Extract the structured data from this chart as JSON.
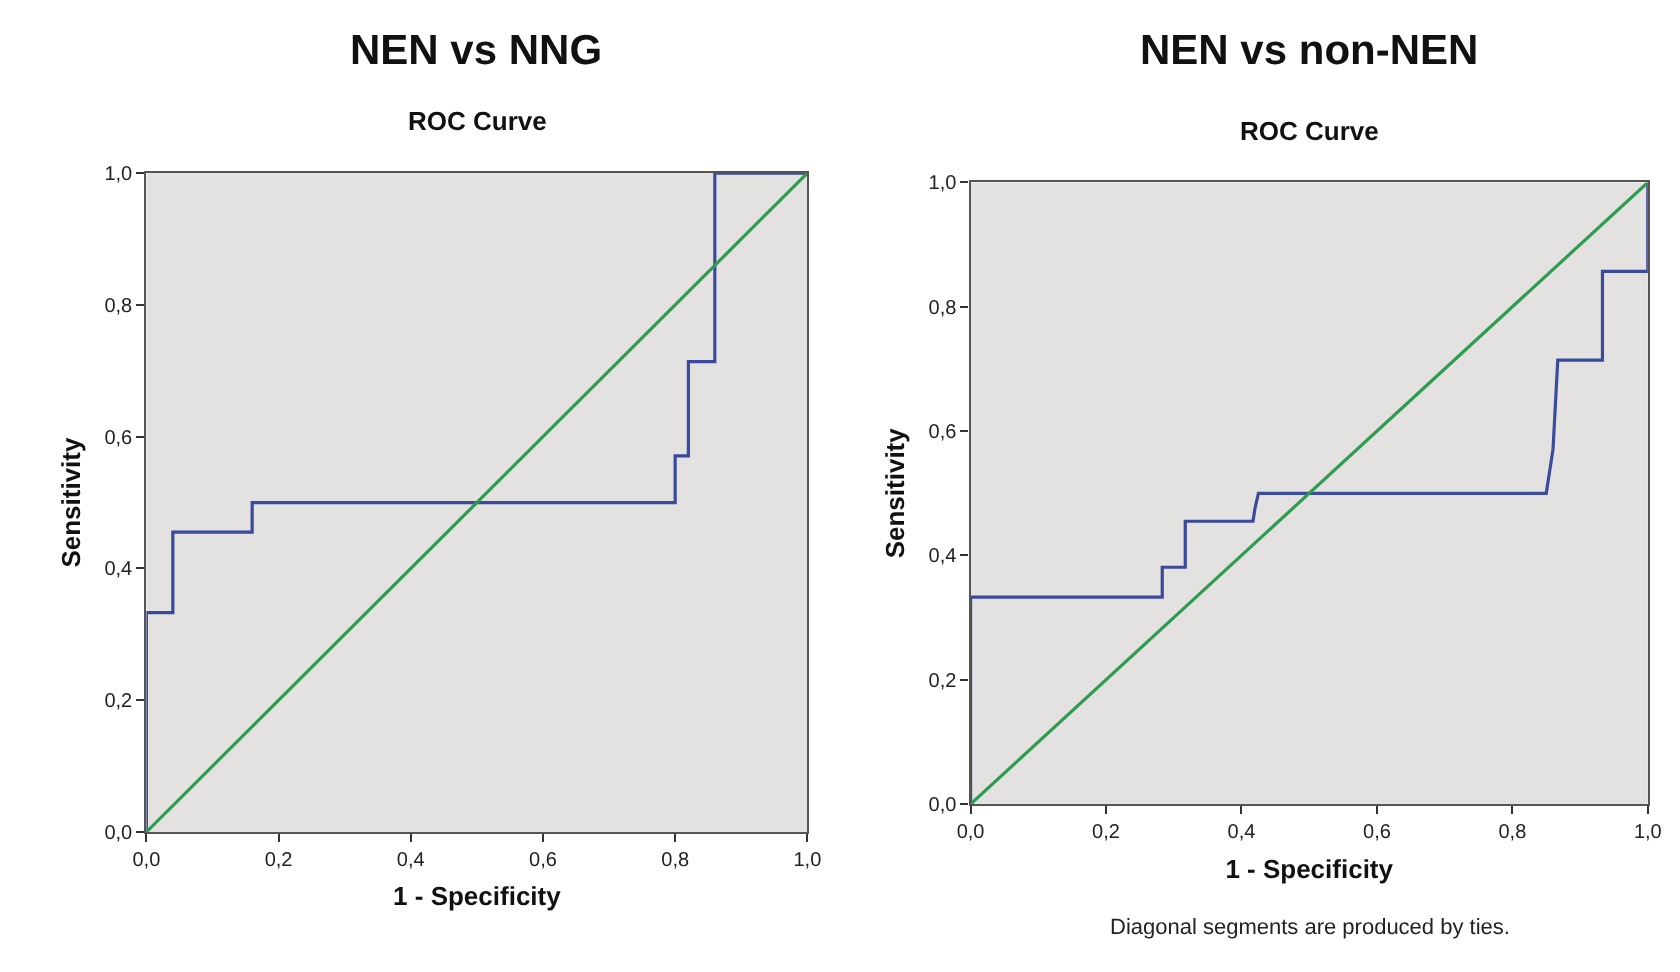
{
  "chart_data": [
    {
      "type": "line",
      "title": "NEN vs NNG",
      "subtitle": "ROC Curve",
      "xlabel": "1 - Specificity",
      "ylabel": "Sensitivity",
      "series": [
        {
          "color": "#3a4b9e",
          "x": [
            0,
            0,
            0.04,
            0.04,
            0.16,
            0.16,
            0.8,
            0.8,
            0.82,
            0.82,
            0.86,
            0.86,
            1
          ],
          "values": [
            0,
            0.333,
            0.333,
            0.455,
            0.455,
            0.5,
            0.5,
            0.571,
            0.571,
            0.714,
            0.714,
            1,
            1
          ]
        },
        {
          "color": "#2e9b4e",
          "x": [
            0,
            1
          ],
          "values": [
            0,
            1
          ]
        }
      ],
      "xlim": [
        0,
        1
      ],
      "ylim": [
        0,
        1
      ],
      "xticks": [
        {
          "value": 0,
          "label": "0,0"
        },
        {
          "value": 0.2,
          "label": "0,2"
        },
        {
          "value": 0.4,
          "label": "0,4"
        },
        {
          "value": 0.6,
          "label": "0,6"
        },
        {
          "value": 0.8,
          "label": "0,8"
        },
        {
          "value": 1,
          "label": "1,0"
        }
      ],
      "yticks": [
        {
          "value": 0,
          "label": "0,0"
        },
        {
          "value": 0.2,
          "label": "0,2"
        },
        {
          "value": 0.4,
          "label": "0,4"
        },
        {
          "value": 0.6,
          "label": "0,6"
        },
        {
          "value": 0.8,
          "label": "0,8"
        },
        {
          "value": 1,
          "label": "1,0"
        }
      ],
      "grid": false,
      "marker": "none",
      "line_style": "solid"
    },
    {
      "type": "line",
      "title": "NEN vs non-NEN",
      "subtitle": "ROC Curve",
      "xlabel": "1 - Specificity",
      "ylabel": "Sensitivity",
      "series": [
        {
          "color": "#3a4b9e",
          "x": [
            0,
            0,
            0.283,
            0.283,
            0.317,
            0.317,
            0.417,
            0.42,
            0.425,
            0.85,
            0.86,
            0.867,
            0.933,
            0.933,
            1,
            1
          ],
          "values": [
            0,
            0.333,
            0.333,
            0.381,
            0.381,
            0.455,
            0.455,
            0.476,
            0.5,
            0.5,
            0.571,
            0.714,
            0.714,
            0.857,
            0.857,
            1
          ]
        },
        {
          "color": "#2e9b4e",
          "x": [
            0,
            1
          ],
          "values": [
            0,
            1
          ]
        }
      ],
      "xlim": [
        0,
        1
      ],
      "ylim": [
        0,
        1
      ],
      "xticks": [
        {
          "value": 0,
          "label": "0,0"
        },
        {
          "value": 0.2,
          "label": "0,2"
        },
        {
          "value": 0.4,
          "label": "0,4"
        },
        {
          "value": 0.6,
          "label": "0,6"
        },
        {
          "value": 0.8,
          "label": "0,8"
        },
        {
          "value": 1,
          "label": "1,0"
        }
      ],
      "yticks": [
        {
          "value": 0,
          "label": "0,0"
        },
        {
          "value": 0.2,
          "label": "0,2"
        },
        {
          "value": 0.4,
          "label": "0,4"
        },
        {
          "value": 0.6,
          "label": "0,6"
        },
        {
          "value": 0.8,
          "label": "0,8"
        },
        {
          "value": 1,
          "label": "1,0"
        }
      ],
      "annotations": [
        "Diagonal segments are produced by ties."
      ],
      "grid": false,
      "marker": "none",
      "line_style": "solid"
    }
  ]
}
